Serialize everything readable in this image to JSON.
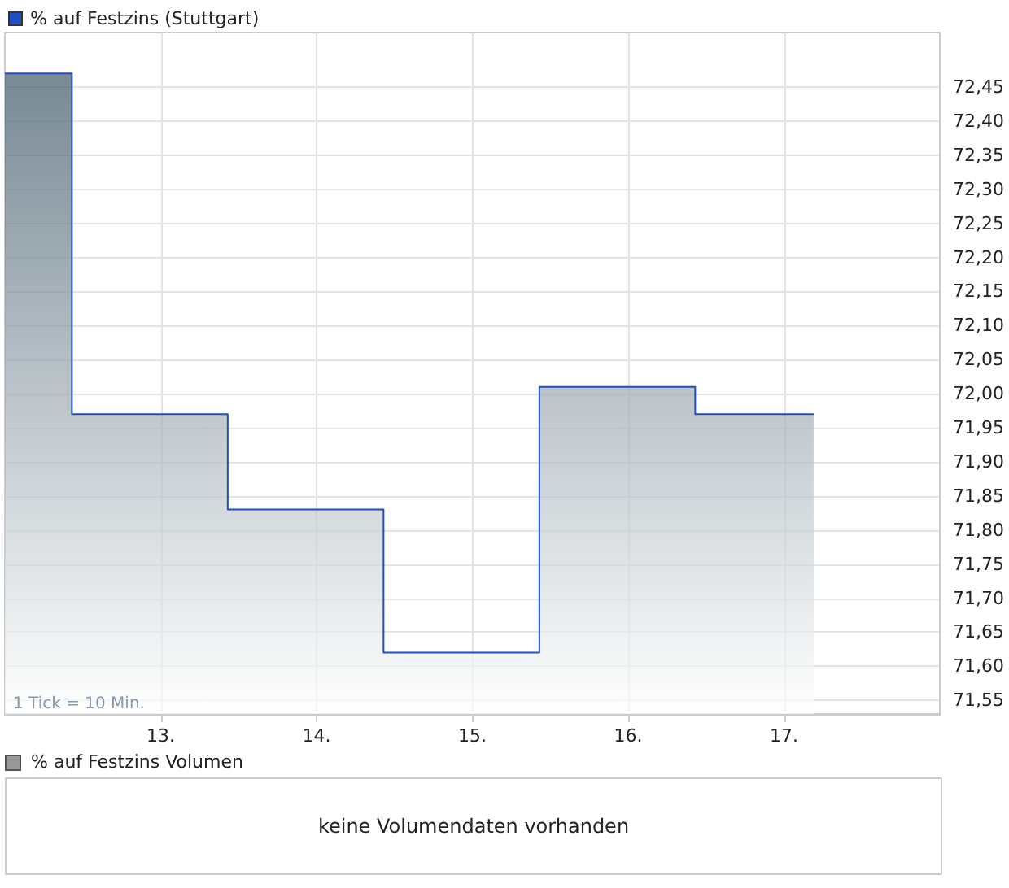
{
  "chart_data": [
    {
      "type": "area",
      "x": [
        12.0,
        12.43,
        12.43,
        13.43,
        13.43,
        14.43,
        14.43,
        15.43,
        15.43,
        16.43,
        16.43,
        17.19
      ],
      "series": [
        {
          "name": "% auf Festzins (Stuttgart)",
          "color": "#1f4fc4",
          "values": [
            72.47,
            72.47,
            71.97,
            71.97,
            71.83,
            71.83,
            71.62,
            71.62,
            72.01,
            72.01,
            71.97,
            71.97
          ]
        }
      ],
      "xlim": [
        12,
        18
      ],
      "xticks": [
        {
          "value": 13,
          "label": "13."
        },
        {
          "value": 14,
          "label": "14."
        },
        {
          "value": 15,
          "label": "15."
        },
        {
          "value": 16,
          "label": "16."
        },
        {
          "value": 17,
          "label": "17."
        }
      ],
      "ylim": [
        71.53,
        72.53
      ],
      "yticks": [
        {
          "value": 71.55,
          "label": "71,55"
        },
        {
          "value": 71.6,
          "label": "71,60"
        },
        {
          "value": 71.65,
          "label": "71,65"
        },
        {
          "value": 71.7,
          "label": "71,70"
        },
        {
          "value": 71.75,
          "label": "71,75"
        },
        {
          "value": 71.8,
          "label": "71,80"
        },
        {
          "value": 71.85,
          "label": "71,85"
        },
        {
          "value": 71.9,
          "label": "71,90"
        },
        {
          "value": 71.95,
          "label": "71,95"
        },
        {
          "value": 72.0,
          "label": "72,00"
        },
        {
          "value": 72.05,
          "label": "72,05"
        },
        {
          "value": 72.1,
          "label": "72,10"
        },
        {
          "value": 72.15,
          "label": "72,15"
        },
        {
          "value": 72.2,
          "label": "72,20"
        },
        {
          "value": 72.25,
          "label": "72,25"
        },
        {
          "value": 72.3,
          "label": "72,30"
        },
        {
          "value": 72.35,
          "label": "72,35"
        },
        {
          "value": 72.4,
          "label": "72,40"
        },
        {
          "value": 72.45,
          "label": "72,45"
        }
      ],
      "grid": true,
      "legend": "top left",
      "annotations": [
        "1 Tick = 10 Min."
      ]
    },
    {
      "type": "other",
      "title": "% auf Festzins Volumen",
      "annotations": [
        "keine Volumendaten vorhanden"
      ]
    }
  ]
}
